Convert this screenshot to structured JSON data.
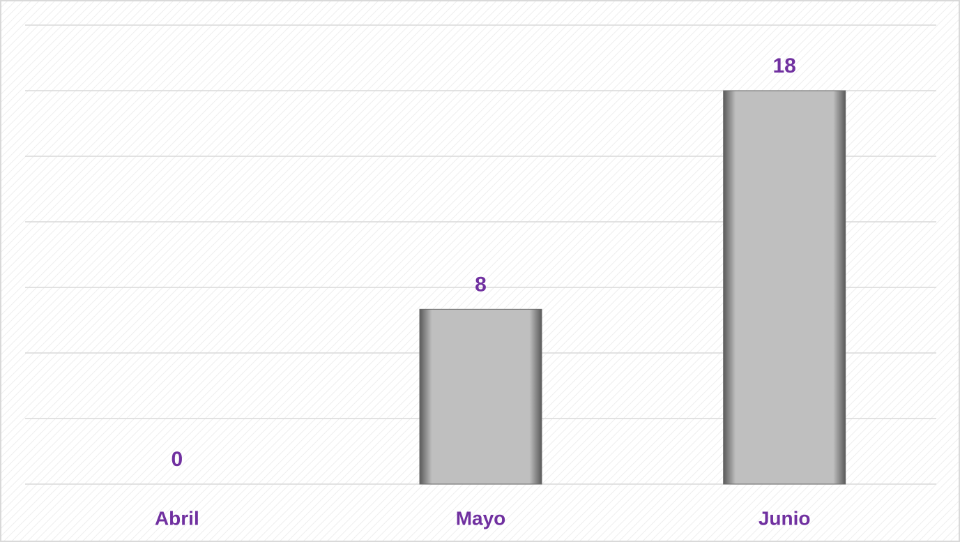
{
  "chart_data": {
    "type": "bar",
    "categories": [
      "Abril",
      "Mayo",
      "Junio"
    ],
    "values": [
      0,
      8,
      18
    ],
    "color": "#bfbfbf",
    "label_color": "#7030a0",
    "ylim": [
      0,
      21
    ],
    "yticks": [
      0,
      3,
      6,
      9,
      12,
      15,
      18,
      21
    ],
    "grid": true
  }
}
